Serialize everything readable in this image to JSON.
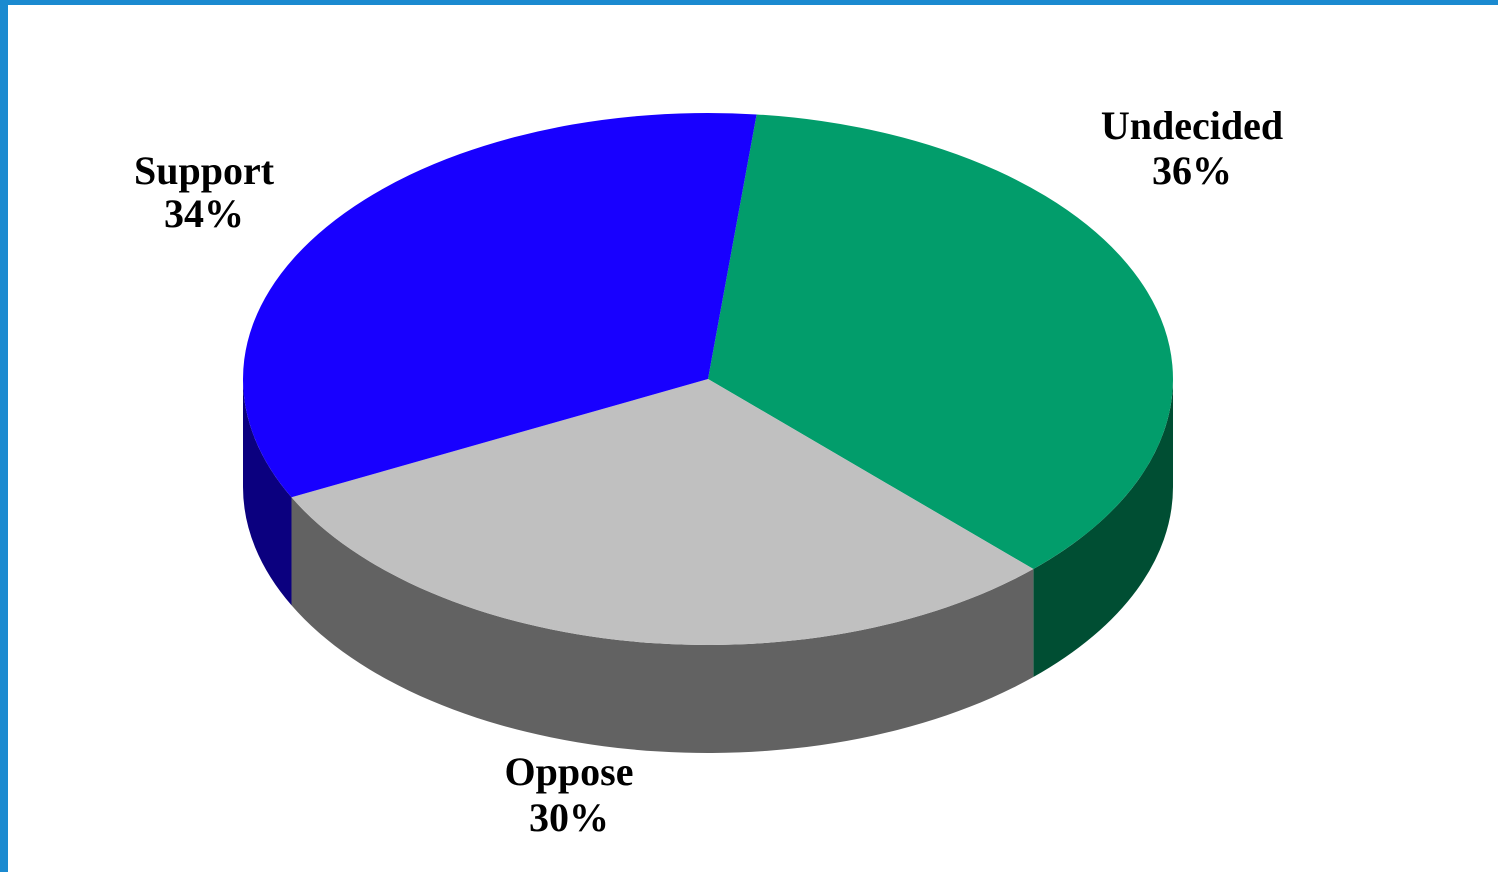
{
  "chart_data": {
    "type": "pie",
    "three_d": true,
    "title": "",
    "slices": [
      {
        "label": "Undecided",
        "value": 36,
        "value_label": "36%",
        "color": "#029d6b",
        "side_color": "#004e33"
      },
      {
        "label": "Oppose",
        "value": 30,
        "value_label": "30%",
        "color": "#c0c0c0",
        "side_color": "#626262"
      },
      {
        "label": "Support",
        "value": 34,
        "value_label": "34%",
        "color": "#1800ff",
        "side_color": "#0b007f"
      }
    ],
    "legend": "none"
  },
  "colors": {
    "border": "#1b8ad0",
    "background": "#ffffff"
  }
}
